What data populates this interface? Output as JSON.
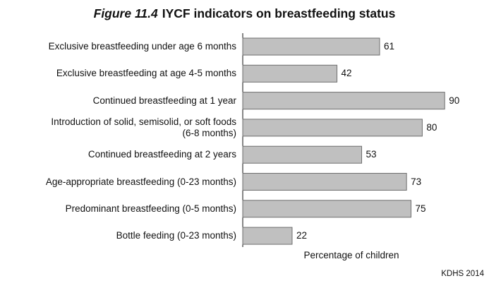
{
  "figure_label": "Figure 11.4",
  "title_text": "IYCF indicators on breastfeeding status",
  "source": "KDHS 2014",
  "chart_data": {
    "type": "bar",
    "orientation": "horizontal",
    "title": "Figure 11.4 IYCF indicators on breastfeeding status",
    "xlabel": "Percentage of children",
    "ylabel": "",
    "categories": [
      "Exclusive breastfeeding under age 6 months",
      "Exclusive breastfeeding at age 4-5 months",
      "Continued breastfeeding at 1 year",
      "Introduction of solid, semisolid, or soft foods\n(6-8 months)",
      "Continued breastfeeding at 2 years",
      "Age-appropriate breastfeeding (0-23 months)",
      "Predominant breastfeeding (0-5 months)",
      "Bottle feeding (0-23 months)"
    ],
    "values": [
      61,
      42,
      90,
      80,
      53,
      73,
      75,
      22
    ],
    "xlim": [
      0,
      100
    ],
    "grid": false,
    "legend": "none",
    "bar_color": "#c0c0c0",
    "bar_edge_color": "#6e6e6e"
  }
}
